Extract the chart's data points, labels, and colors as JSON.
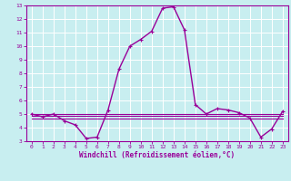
{
  "xlabel": "Windchill (Refroidissement éolien,°C)",
  "bg_color": "#c8eef0",
  "line_color": "#990099",
  "grid_color": "#ffffff",
  "axis_color": "#660066",
  "xlim": [
    -0.5,
    23.5
  ],
  "ylim": [
    3,
    13
  ],
  "xticks": [
    0,
    1,
    2,
    3,
    4,
    5,
    6,
    7,
    8,
    9,
    10,
    11,
    12,
    13,
    14,
    15,
    16,
    17,
    18,
    19,
    20,
    21,
    22,
    23
  ],
  "yticks": [
    3,
    4,
    5,
    6,
    7,
    8,
    9,
    10,
    11,
    12,
    13
  ],
  "series1_x": [
    0,
    1,
    2,
    3,
    4,
    5,
    6,
    7,
    8,
    9,
    10,
    11,
    12,
    13,
    14,
    15,
    16,
    17,
    18,
    19,
    20,
    21,
    22,
    23
  ],
  "series1_y": [
    5.0,
    4.8,
    5.0,
    4.5,
    4.2,
    3.2,
    3.3,
    5.3,
    8.3,
    10.0,
    10.5,
    11.1,
    12.8,
    12.9,
    11.2,
    5.7,
    5.0,
    5.4,
    5.3,
    5.1,
    4.7,
    3.3,
    3.9,
    5.2
  ],
  "series2_x": [
    0,
    1,
    2,
    3,
    4,
    5,
    6,
    7,
    8,
    9,
    10,
    11,
    12,
    13,
    14,
    15,
    16,
    17,
    18,
    19,
    20,
    21,
    22,
    23
  ],
  "series2_y": [
    5.0,
    5.0,
    5.0,
    5.0,
    5.0,
    5.0,
    5.0,
    5.0,
    5.0,
    5.0,
    5.0,
    5.0,
    5.0,
    5.0,
    5.0,
    5.0,
    5.0,
    5.0,
    5.0,
    5.0,
    5.0,
    5.0,
    5.0,
    5.0
  ],
  "series3_x": [
    0,
    1,
    2,
    3,
    4,
    5,
    6,
    7,
    8,
    9,
    10,
    11,
    12,
    13,
    14,
    15,
    16,
    17,
    18,
    19,
    20,
    21,
    22,
    23
  ],
  "series3_y": [
    4.85,
    4.85,
    4.85,
    4.85,
    4.85,
    4.85,
    4.85,
    4.85,
    4.85,
    4.85,
    4.85,
    4.85,
    4.85,
    4.85,
    4.85,
    4.85,
    4.85,
    4.85,
    4.85,
    4.85,
    4.85,
    4.85,
    4.85,
    4.85
  ],
  "series4_x": [
    0,
    1,
    2,
    3,
    4,
    5,
    6,
    7,
    8,
    9,
    10,
    11,
    12,
    13,
    14,
    15,
    16,
    17,
    18,
    19,
    20,
    21,
    22,
    23
  ],
  "series4_y": [
    4.7,
    4.7,
    4.7,
    4.7,
    4.7,
    4.7,
    4.7,
    4.7,
    4.7,
    4.7,
    4.7,
    4.7,
    4.7,
    4.7,
    4.7,
    4.7,
    4.7,
    4.7,
    4.7,
    4.7,
    4.7,
    4.7,
    4.7,
    4.7
  ]
}
